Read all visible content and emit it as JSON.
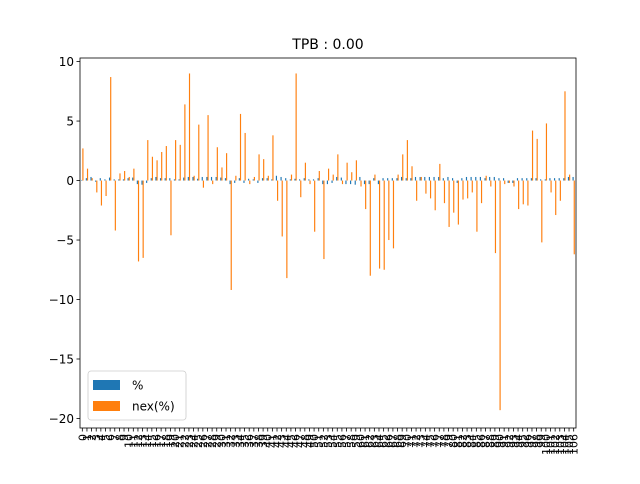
{
  "chart_data": {
    "type": "bar",
    "title": "TPB : 0.00",
    "xlabel": "",
    "ylabel": "",
    "ylim": [
      -20.8,
      10.3
    ],
    "yticks": [
      10,
      5,
      0,
      -5,
      -10,
      -15,
      -20
    ],
    "grid": false,
    "legend_position": "lower-left",
    "categories": [
      "0",
      "1",
      "2",
      "3",
      "4",
      "5",
      "6",
      "7",
      "8",
      "9",
      "10",
      "11",
      "12",
      "13",
      "14",
      "15",
      "16",
      "17",
      "18",
      "19",
      "20",
      "21",
      "22",
      "23",
      "24",
      "25",
      "26",
      "27",
      "28",
      "29",
      "30",
      "31",
      "32",
      "33",
      "34",
      "35",
      "36",
      "37",
      "38",
      "39",
      "40",
      "41",
      "42",
      "43",
      "44",
      "45",
      "46",
      "47",
      "48",
      "49",
      "50",
      "51",
      "52",
      "53",
      "54",
      "55",
      "56",
      "57",
      "58",
      "59",
      "60",
      "61",
      "62",
      "63",
      "64",
      "65",
      "66",
      "67",
      "68",
      "69",
      "70",
      "71",
      "72",
      "73",
      "74",
      "75",
      "76",
      "77",
      "78",
      "79",
      "80",
      "81",
      "82",
      "83",
      "84",
      "85",
      "86",
      "87",
      "88",
      "89",
      "90",
      "91",
      "92",
      "93",
      "94",
      "95",
      "96",
      "97",
      "98",
      "99",
      "100",
      "101",
      "102",
      "103",
      "104",
      "105",
      "106"
    ],
    "series": [
      {
        "name": "%",
        "color": "#1f77b4",
        "values": [
          0.05,
          0.2,
          0.3,
          -0.1,
          0.2,
          0.1,
          0.25,
          0.1,
          0.1,
          0.1,
          0.2,
          0.25,
          -0.3,
          -0.35,
          -0.2,
          0.2,
          0.3,
          0.2,
          0.2,
          0.2,
          0.1,
          0.1,
          0.25,
          0.3,
          0.3,
          0.15,
          0.3,
          0.3,
          0.3,
          0.3,
          0.25,
          0.2,
          -0.3,
          -0.2,
          0.2,
          -0.2,
          0.15,
          0.1,
          -0.2,
          0.2,
          0.2,
          0.1,
          0.4,
          0.3,
          0.2,
          0.1,
          0.15,
          0.1,
          0.2,
          0.1,
          0.1,
          0.2,
          -0.3,
          -0.3,
          -0.2,
          0.3,
          0.25,
          -0.3,
          -0.3,
          -0.35,
          0.3,
          -0.3,
          -0.3,
          0.2,
          -0.3,
          0.2,
          0.2,
          0.2,
          0.2,
          0.3,
          0.2,
          0.2,
          0.3,
          0.3,
          0.3,
          0.3,
          0.3,
          0.3,
          0.2,
          0.3,
          0.2,
          -0.2,
          0.2,
          0.3,
          0.3,
          0.3,
          0.3,
          0.2,
          0.3,
          0.3,
          0.2,
          0.2,
          -0.2,
          -0.2,
          0.2,
          0.2,
          0.2,
          0.2,
          0.2,
          0.1,
          0.1,
          0.2,
          0.2,
          0.2,
          0.2,
          0.3,
          0.3
        ]
      },
      {
        "name": "nex(%)",
        "color": "#ff7f0e",
        "values": [
          2.7,
          1.0,
          0.2,
          -1.0,
          -2.1,
          -1.3,
          8.7,
          -4.2,
          0.6,
          0.8,
          0.3,
          1.0,
          -6.8,
          -6.5,
          3.4,
          2.0,
          1.7,
          2.4,
          2.9,
          -4.6,
          3.4,
          3.0,
          6.4,
          9.0,
          0.4,
          4.7,
          -0.6,
          5.5,
          -0.3,
          2.8,
          1.1,
          2.3,
          -9.2,
          0.4,
          5.6,
          4.0,
          -0.3,
          0.3,
          2.2,
          1.8,
          0.4,
          3.8,
          -1.7,
          -4.7,
          -8.2,
          0.5,
          9.0,
          -1.4,
          1.5,
          -0.3,
          -4.3,
          0.8,
          -6.6,
          1.0,
          0.5,
          2.2,
          -0.3,
          1.5,
          0.7,
          1.7,
          -0.5,
          -2.4,
          -8.0,
          0.5,
          -7.4,
          -7.5,
          -5.0,
          -5.7,
          0.5,
          2.2,
          3.4,
          1.2,
          -1.7,
          0.3,
          -1.1,
          -1.5,
          -2.5,
          1.4,
          -1.9,
          -3.9,
          -2.7,
          -3.7,
          -1.6,
          -1.5,
          -1.0,
          -4.3,
          -1.9,
          0.4,
          -0.5,
          -6.1,
          -19.3,
          -0.3,
          -0.2,
          -0.5,
          -2.4,
          -2.0,
          -2.1,
          4.2,
          3.5,
          -5.2,
          4.8,
          -1.0,
          -2.9,
          -1.7,
          7.5,
          0.5,
          -6.2
        ]
      }
    ]
  }
}
